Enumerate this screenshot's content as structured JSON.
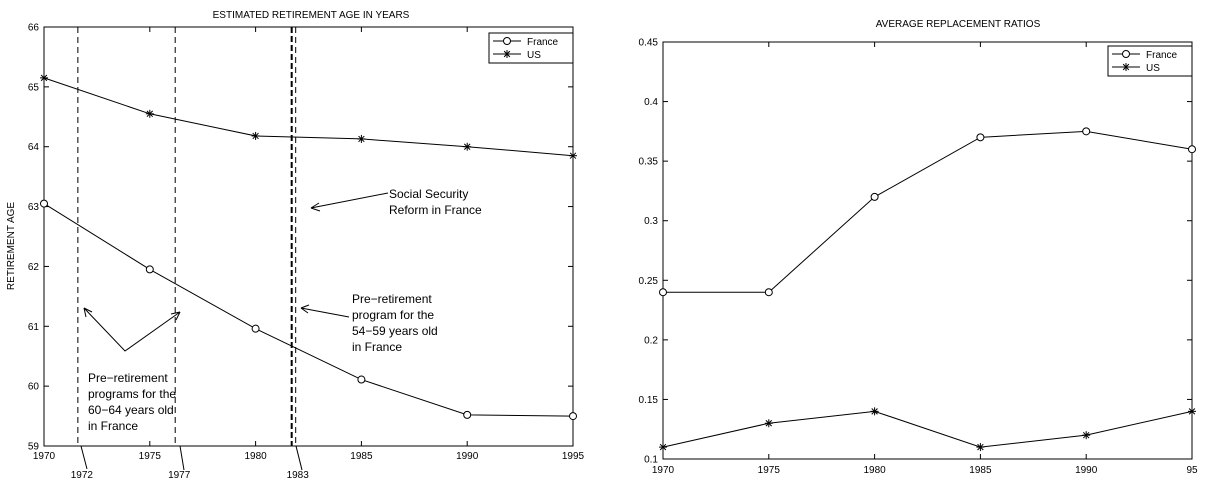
{
  "chart_data": [
    {
      "type": "line",
      "title": "ESTIMATED RETIREMENT AGE IN YEARS",
      "xlabel": "",
      "ylabel": "RETIREMENT AGE",
      "xlim": [
        1970,
        1995
      ],
      "ylim": [
        59,
        66
      ],
      "x_ticks": [
        "1970",
        "1975",
        "1980",
        "1985",
        "1990",
        "1995"
      ],
      "y_ticks": [
        "59",
        "60",
        "61",
        "62",
        "63",
        "64",
        "65",
        "66"
      ],
      "x": [
        1970,
        1975,
        1980,
        1985,
        1990,
        1995
      ],
      "series": [
        {
          "name": "France",
          "marker": "circle",
          "values": [
            63.05,
            61.95,
            60.96,
            60.11,
            59.52,
            59.5
          ]
        },
        {
          "name": "US",
          "marker": "star",
          "values": [
            65.15,
            64.55,
            64.18,
            64.13,
            64.0,
            63.85
          ]
        }
      ],
      "vertical_lines": [
        {
          "x": 1971.6,
          "label": "1972",
          "style": "dashed"
        },
        {
          "x": 1976.2,
          "label": "1977",
          "style": "dashed"
        },
        {
          "x": 1981.8,
          "label": "1983",
          "style": "bold-dashed"
        }
      ],
      "annotations": [
        {
          "lines": [
            "Social Security",
            "Reform in France"
          ]
        },
        {
          "lines": [
            "Pre−retirement",
            "program for the",
            "54−59 years old",
            "in France"
          ]
        },
        {
          "lines": [
            "Pre−retirement",
            "programs for the",
            "60−64 years old",
            "in France"
          ]
        }
      ],
      "legend": {
        "position": "top-right",
        "entries": [
          "France",
          "US"
        ]
      },
      "grid": false
    },
    {
      "type": "line",
      "title": "AVERAGE REPLACEMENT RATIOS",
      "xlabel": "",
      "ylabel": "",
      "xlim": [
        1970,
        1995
      ],
      "ylim": [
        0.1,
        0.45
      ],
      "x_ticks": [
        "1970",
        "1975",
        "1980",
        "1985",
        "1990",
        "95"
      ],
      "y_ticks": [
        "0.1",
        "0.15",
        "0.2",
        "0.25",
        "0.3",
        "0.35",
        "0.4",
        "0.45"
      ],
      "x": [
        1970,
        1975,
        1980,
        1985,
        1990,
        1995
      ],
      "series": [
        {
          "name": "France",
          "marker": "circle",
          "values": [
            0.24,
            0.24,
            0.32,
            0.37,
            0.375,
            0.36
          ]
        },
        {
          "name": "US",
          "marker": "star",
          "values": [
            0.11,
            0.13,
            0.14,
            0.11,
            0.12,
            0.14
          ]
        }
      ],
      "legend": {
        "position": "top-right",
        "entries": [
          "France",
          "US"
        ]
      },
      "grid": false
    }
  ]
}
